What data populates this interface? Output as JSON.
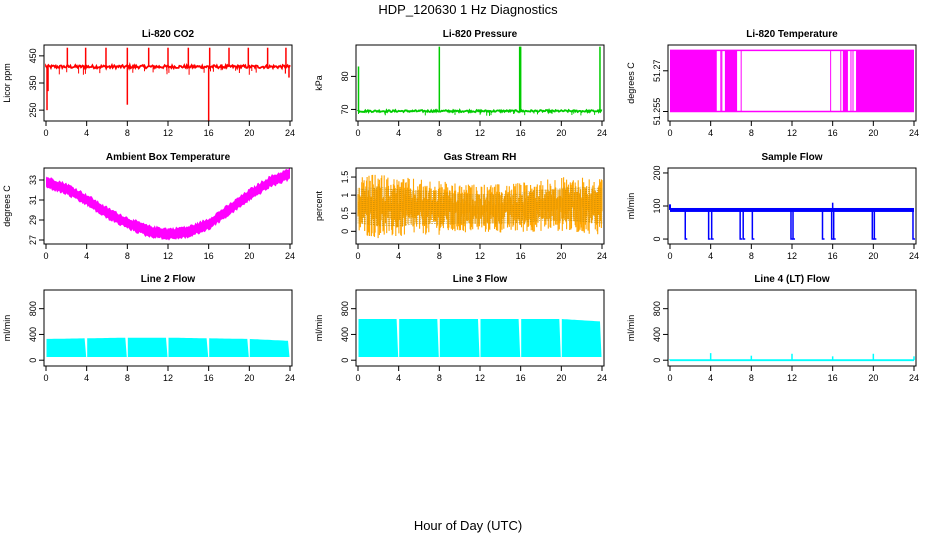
{
  "title": "HDP_120630  1 Hz Diagnostics",
  "xlabel": "Hour of Day (UTC)",
  "chart_data": [
    {
      "type": "line",
      "title": "Li-820 CO2",
      "ylabel": "Licor ppm",
      "xlim": [
        0,
        24
      ],
      "xticks": [
        0,
        4,
        8,
        12,
        16,
        20,
        24
      ],
      "ylim": [
        210,
        490
      ],
      "yticks": [
        250,
        350,
        450
      ],
      "color": "#ff0000",
      "baseline": 410,
      "noise": 6,
      "spikes": [
        {
          "x": 0.1,
          "y": 250
        },
        {
          "x": 0.2,
          "y": 320
        },
        {
          "x": 2.1,
          "y": 480
        },
        {
          "x": 3.9,
          "y": 480
        },
        {
          "x": 5.9,
          "y": 480
        },
        {
          "x": 8.0,
          "y": 270
        },
        {
          "x": 8.0,
          "y": 480
        },
        {
          "x": 10.1,
          "y": 480
        },
        {
          "x": 12.0,
          "y": 480
        },
        {
          "x": 14.0,
          "y": 480
        },
        {
          "x": 16.0,
          "y": 205
        },
        {
          "x": 16.1,
          "y": 480
        },
        {
          "x": 18.0,
          "y": 480
        },
        {
          "x": 19.9,
          "y": 480
        },
        {
          "x": 21.8,
          "y": 480
        },
        {
          "x": 23.6,
          "y": 480
        },
        {
          "x": 23.9,
          "y": 370
        }
      ]
    },
    {
      "type": "line",
      "title": "Li-820 Pressure",
      "ylabel": "kPa",
      "xlim": [
        0,
        24
      ],
      "xticks": [
        0,
        4,
        8,
        12,
        16,
        20,
        24
      ],
      "ylim": [
        66.5,
        89.5
      ],
      "yticks": [
        70,
        80
      ],
      "color": "#00cc00",
      "baseline": 69.5,
      "noise": 0.3,
      "spikes": [
        {
          "x": 0.05,
          "y": 83
        },
        {
          "x": 8.0,
          "y": 89
        },
        {
          "x": 15.9,
          "y": 89
        },
        {
          "x": 16.0,
          "y": 89
        },
        {
          "x": 23.8,
          "y": 89
        }
      ]
    },
    {
      "type": "line",
      "title": "Li-820 Temperature",
      "ylabel": "degrees C",
      "xlim": [
        0,
        24
      ],
      "xticks": [
        0,
        4,
        8,
        12,
        16,
        20,
        24
      ],
      "ylim": [
        51.2515,
        51.2795
      ],
      "yticks": [
        51.255,
        51.27
      ],
      "color": "#ff00ff",
      "levels": [
        51.255,
        51.2775
      ],
      "oscillating_ranges": [
        [
          0,
          4.6
        ],
        [
          5.4,
          6.6
        ],
        [
          17.0,
          17.5
        ],
        [
          18.3,
          24
        ]
      ],
      "jumps": [
        5.0,
        5.1,
        7.0,
        15.8,
        16.8,
        17.8,
        18.0
      ]
    },
    {
      "type": "line",
      "title": "Ambient Box Temperature",
      "ylabel": "degrees C",
      "xlim": [
        0,
        24
      ],
      "xticks": [
        0,
        4,
        8,
        12,
        16,
        20,
        24
      ],
      "ylim": [
        26.6,
        34.2
      ],
      "yticks": [
        27,
        29,
        31,
        33
      ],
      "color": "#ff00ff",
      "band_width": 1.1,
      "x": [
        0,
        2,
        4,
        6,
        8,
        10,
        12,
        14,
        16,
        18,
        20,
        22,
        24
      ],
      "y": [
        32.8,
        32.1,
        31.0,
        29.7,
        28.7,
        27.9,
        27.6,
        27.8,
        28.6,
        30.0,
        31.5,
        32.8,
        33.6
      ]
    },
    {
      "type": "line",
      "title": "Gas Stream RH",
      "ylabel": "percent",
      "xlim": [
        0,
        24
      ],
      "xticks": [
        0,
        4,
        8,
        12,
        16,
        20,
        24
      ],
      "ylim": [
        -0.35,
        1.75
      ],
      "yticks": [
        0.0,
        0.5,
        1.0,
        1.5
      ],
      "color": "#ffa500",
      "x": [
        0,
        2,
        4,
        6,
        8,
        10,
        12,
        14,
        16,
        18,
        20,
        22,
        24
      ],
      "y_low": [
        -0.1,
        -0.2,
        -0.2,
        -0.1,
        -0.1,
        -0.05,
        -0.05,
        -0.05,
        -0.05,
        0.0,
        0.0,
        -0.05,
        -0.1
      ],
      "y_high": [
        1.5,
        1.6,
        1.5,
        1.45,
        1.4,
        1.3,
        1.3,
        1.3,
        1.35,
        1.45,
        1.5,
        1.55,
        1.5
      ]
    },
    {
      "type": "line",
      "title": "Sample Flow",
      "ylabel": "ml/min",
      "xlim": [
        0,
        24
      ],
      "xticks": [
        0,
        4,
        8,
        12,
        16,
        20,
        24
      ],
      "ylim": [
        -15,
        215
      ],
      "yticks": [
        0,
        100,
        200
      ],
      "color": "#0000ff",
      "baseline": 88,
      "band_width": 12,
      "drops": [
        1.5,
        3.8,
        4.1,
        6.9,
        7.2,
        8.1,
        11.9,
        12.1,
        15.0,
        15.9,
        16.1,
        19.9,
        20.1,
        23.9
      ]
    },
    {
      "type": "area",
      "title": "Line 2 Flow",
      "ylabel": "ml/min",
      "xlim": [
        0,
        24
      ],
      "xticks": [
        0,
        4,
        8,
        12,
        16,
        20,
        24
      ],
      "ylim": [
        -90,
        1090
      ],
      "yticks": [
        0,
        400,
        800
      ],
      "color": "#00ffff",
      "band_low": 50,
      "x": [
        0,
        4,
        8,
        12,
        16,
        20,
        24
      ],
      "band_high": [
        330,
        340,
        350,
        350,
        340,
        330,
        300
      ],
      "gaps": [
        4,
        8,
        12,
        16,
        20
      ]
    },
    {
      "type": "area",
      "title": "Line 3 Flow",
      "ylabel": "ml/min",
      "xlim": [
        0,
        24
      ],
      "xticks": [
        0,
        4,
        8,
        12,
        16,
        20,
        24
      ],
      "ylim": [
        -90,
        1090
      ],
      "yticks": [
        0,
        400,
        800
      ],
      "color": "#00ffff",
      "band_low": 50,
      "x": [
        0,
        4,
        8,
        12,
        16,
        20,
        24
      ],
      "band_high": [
        640,
        640,
        640,
        640,
        640,
        640,
        600
      ],
      "gaps": [
        4,
        8,
        12,
        16,
        20
      ]
    },
    {
      "type": "line",
      "title": "Line 4 (LT) Flow",
      "ylabel": "ml/min",
      "xlim": [
        0,
        24
      ],
      "xticks": [
        0,
        4,
        8,
        12,
        16,
        20,
        24
      ],
      "ylim": [
        -90,
        1090
      ],
      "yticks": [
        0,
        400,
        800
      ],
      "color": "#00ffff",
      "baseline": 0,
      "spikes": [
        {
          "x": 4.0,
          "y": 110
        },
        {
          "x": 8.0,
          "y": 70
        },
        {
          "x": 12.0,
          "y": 100
        },
        {
          "x": 16.0,
          "y": 60
        },
        {
          "x": 20.0,
          "y": 100
        },
        {
          "x": 24.0,
          "y": 60
        }
      ]
    }
  ]
}
